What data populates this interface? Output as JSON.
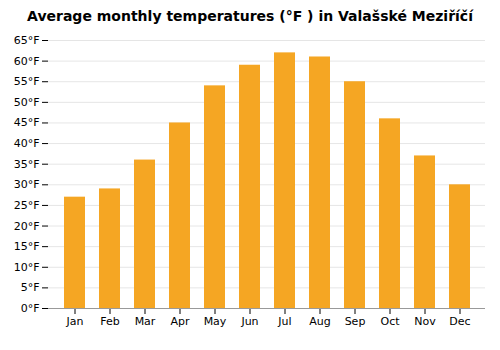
{
  "chart_data": {
    "type": "bar",
    "title": "Average monthly temperatures (°F ) in Valašské Meziříčí",
    "categories": [
      "Jan",
      "Feb",
      "Mar",
      "Apr",
      "May",
      "Jun",
      "Jul",
      "Aug",
      "Sep",
      "Oct",
      "Nov",
      "Dec"
    ],
    "values": [
      27,
      29,
      36,
      45,
      54,
      59,
      62,
      61,
      55,
      46,
      37,
      30
    ],
    "color": "#F5A623",
    "ylim": [
      0,
      65
    ],
    "yticks": [
      {
        "value": 0,
        "label": "0°F"
      },
      {
        "value": 5,
        "label": "5°F"
      },
      {
        "value": 10,
        "label": "10°F"
      },
      {
        "value": 15,
        "label": "15°F"
      },
      {
        "value": 20,
        "label": "20°F"
      },
      {
        "value": 25,
        "label": "25°F"
      },
      {
        "value": 30,
        "label": "30°F"
      },
      {
        "value": 35,
        "label": "35°F"
      },
      {
        "value": 40,
        "label": "40°F"
      },
      {
        "value": 45,
        "label": "45°F"
      },
      {
        "value": 50,
        "label": "50°F"
      },
      {
        "value": 55,
        "label": "55°F"
      },
      {
        "value": 60,
        "label": "60°F"
      },
      {
        "value": 65,
        "label": "65°F"
      }
    ],
    "grid": true
  }
}
